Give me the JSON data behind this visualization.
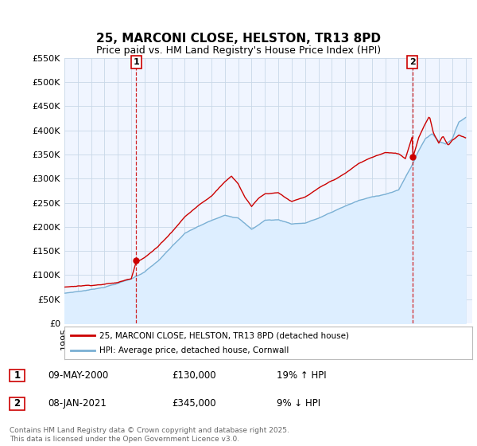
{
  "title": "25, MARCONI CLOSE, HELSTON, TR13 8PD",
  "subtitle": "Price paid vs. HM Land Registry's House Price Index (HPI)",
  "ylabel_ticks": [
    "£0",
    "£50K",
    "£100K",
    "£150K",
    "£200K",
    "£250K",
    "£300K",
    "£350K",
    "£400K",
    "£450K",
    "£500K",
    "£550K"
  ],
  "ylim": [
    0,
    550000
  ],
  "xlim_start": 1995.0,
  "xlim_end": 2025.5,
  "sale1_date": 2000.36,
  "sale1_price": 130000,
  "sale1_label": "1",
  "sale1_display": "09-MAY-2000",
  "sale1_amount": "£130,000",
  "sale1_hpi": "19% ↑ HPI",
  "sale2_date": 2021.03,
  "sale2_price": 345000,
  "sale2_label": "2",
  "sale2_display": "08-JAN-2021",
  "sale2_amount": "£345,000",
  "sale2_hpi": "9% ↓ HPI",
  "line1_color": "#cc0000",
  "line2_color": "#7ab0d4",
  "line2_fill_color": "#ddeeff",
  "plot_bg_color": "#f0f5ff",
  "legend_line1": "25, MARCONI CLOSE, HELSTON, TR13 8PD (detached house)",
  "legend_line2": "HPI: Average price, detached house, Cornwall",
  "footnote": "Contains HM Land Registry data © Crown copyright and database right 2025.\nThis data is licensed under the Open Government Licence v3.0.",
  "bg_color": "#ffffff",
  "grid_color": "#c8d8e8",
  "title_fontsize": 11,
  "subtitle_fontsize": 9,
  "tick_fontsize": 8
}
